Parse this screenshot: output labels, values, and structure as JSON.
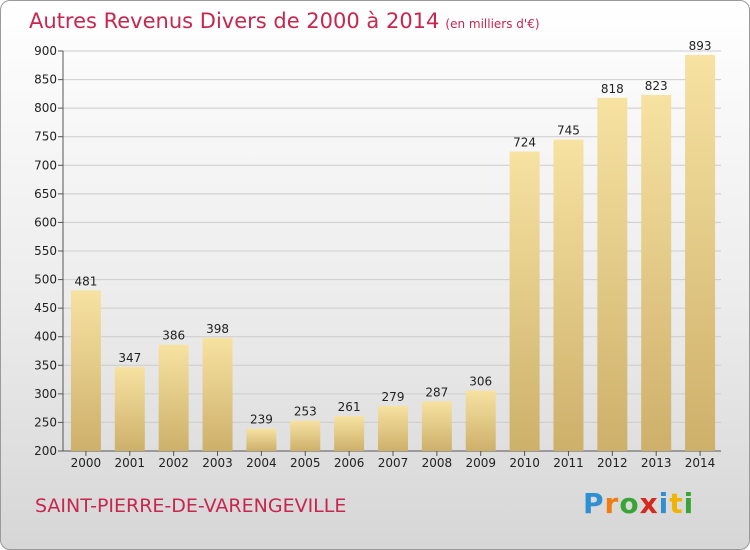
{
  "title": "Autres Revenus Divers de 2000 à 2014",
  "subtitle": "(en milliers d'€)",
  "commune": "SAINT-PIERRE-DE-VARENGEVILLE",
  "logo": {
    "letters": [
      "P",
      "r",
      "o",
      "x",
      "i",
      "t",
      "i"
    ],
    "colors": [
      "#2f8fd3",
      "#ef7d12",
      "#3aa537",
      "#d42a1c",
      "#2f8fd3",
      "#f0b400",
      "#3aa537"
    ]
  },
  "colors": {
    "title": "#c8264f",
    "bar_light": "#f7e2a2",
    "bar_dark": "#cdb06a",
    "grid": "#cccccc"
  },
  "chart_data": {
    "type": "bar",
    "categories": [
      "2000",
      "2001",
      "2002",
      "2003",
      "2004",
      "2005",
      "2006",
      "2007",
      "2008",
      "2009",
      "2010",
      "2011",
      "2012",
      "2013",
      "2014"
    ],
    "values": [
      481,
      347,
      386,
      398,
      239,
      253,
      261,
      279,
      287,
      306,
      724,
      745,
      818,
      823,
      893
    ],
    "ylim": [
      200,
      900
    ],
    "yticks": [
      200,
      250,
      300,
      350,
      400,
      450,
      500,
      550,
      600,
      650,
      700,
      750,
      800,
      850,
      900
    ],
    "grid": true
  }
}
